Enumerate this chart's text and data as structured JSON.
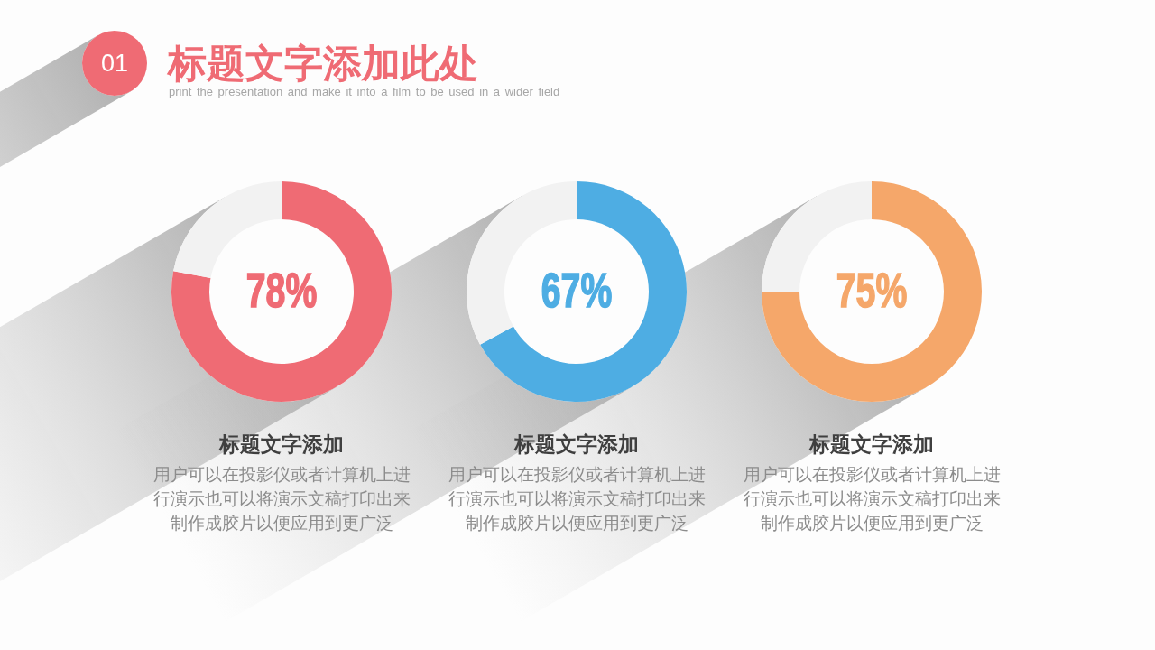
{
  "chart_data": [
    {
      "type": "other",
      "title": "标题文字添加此处",
      "subtitle": "print the presentation and make it into a film to be used in a wider field",
      "annotations": [
        "01"
      ]
    },
    {
      "type": "donut",
      "title": "标题文字添加",
      "annotations": [
        "用户可以在投影仪或者计算机上进行演示也可以将演示文稿打印出来制作成胶片以便应用到更广泛"
      ],
      "categories": [
        null,
        null
      ],
      "values": [
        78,
        22
      ],
      "colors": [
        "#ef6b74",
        "#f2f2f2"
      ],
      "value_labels": [
        "78%",
        null
      ]
    },
    {
      "type": "donut",
      "title": "标题文字添加",
      "annotations": [
        "用户可以在投影仪或者计算机上进行演示也可以将演示文稿打印出来制作成胶片以便应用到更广泛"
      ],
      "categories": [
        null,
        null
      ],
      "values": [
        67,
        33
      ],
      "colors": [
        "#4eade3",
        "#f2f2f2"
      ],
      "value_labels": [
        "67%",
        null
      ]
    },
    {
      "type": "donut",
      "title": "标题文字添加",
      "annotations": [
        "用户可以在投影仪或者计算机上进行演示也可以将演示文稿打印出来制作成胶片以便应用到更广泛"
      ],
      "categories": [
        null,
        null
      ],
      "values": [
        75,
        25
      ],
      "colors": [
        "#f5a76a",
        "#f2f2f2"
      ],
      "value_labels": [
        "75%",
        null
      ]
    }
  ]
}
